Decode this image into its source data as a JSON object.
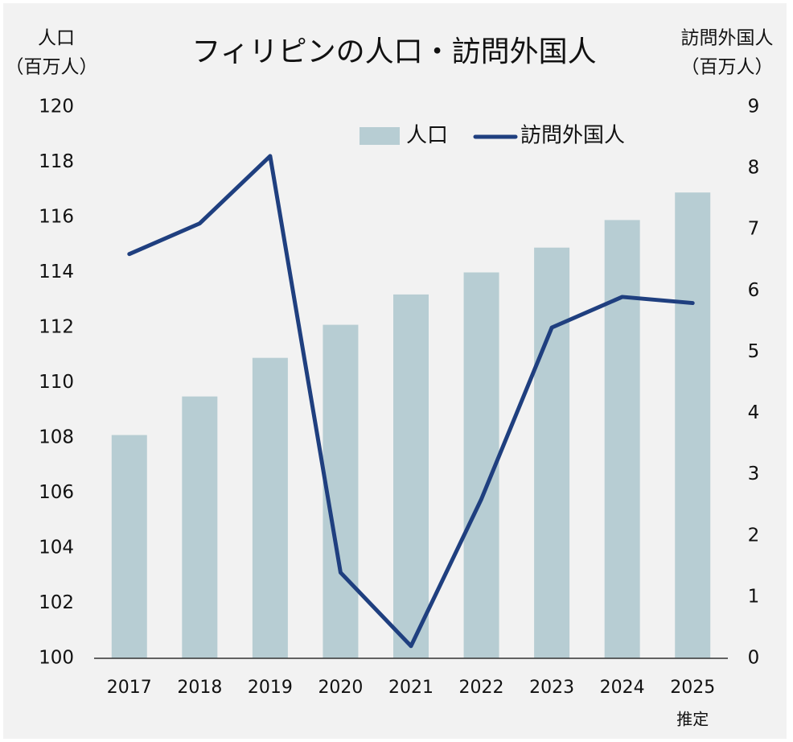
{
  "chart_data": {
    "type": "bar_line",
    "title": "フィリピンの人口・訪問外国人",
    "y_label": [
      "人口",
      "（百万人）"
    ],
    "y2_label": [
      "訪問外国人",
      "（百万人）"
    ],
    "categories": [
      "2017",
      "2018",
      "2019",
      "2020",
      "2021",
      "2022",
      "2023",
      "2024",
      "2025"
    ],
    "category_note": "推定",
    "series": [
      {
        "name": "人口",
        "type": "bar",
        "color": "#b7cdd3",
        "axis": "y",
        "values": [
          108.1,
          109.5,
          110.9,
          112.1,
          113.2,
          114.0,
          114.9,
          115.9,
          116.9
        ]
      },
      {
        "name": "訪問外国人",
        "type": "line",
        "color": "#1f3f7f",
        "axis": "y2",
        "values": [
          6.6,
          7.1,
          8.2,
          1.4,
          0.2,
          2.6,
          5.4,
          5.9,
          5.8
        ]
      }
    ],
    "ylim": [
      100,
      120
    ],
    "yticks": [
      100,
      102,
      104,
      106,
      108,
      110,
      112,
      114,
      116,
      118,
      120
    ],
    "y2lim": [
      0,
      9
    ],
    "y2ticks": [
      0,
      1,
      2,
      3,
      4,
      5,
      6,
      7,
      8,
      9
    ],
    "legend": "top"
  }
}
